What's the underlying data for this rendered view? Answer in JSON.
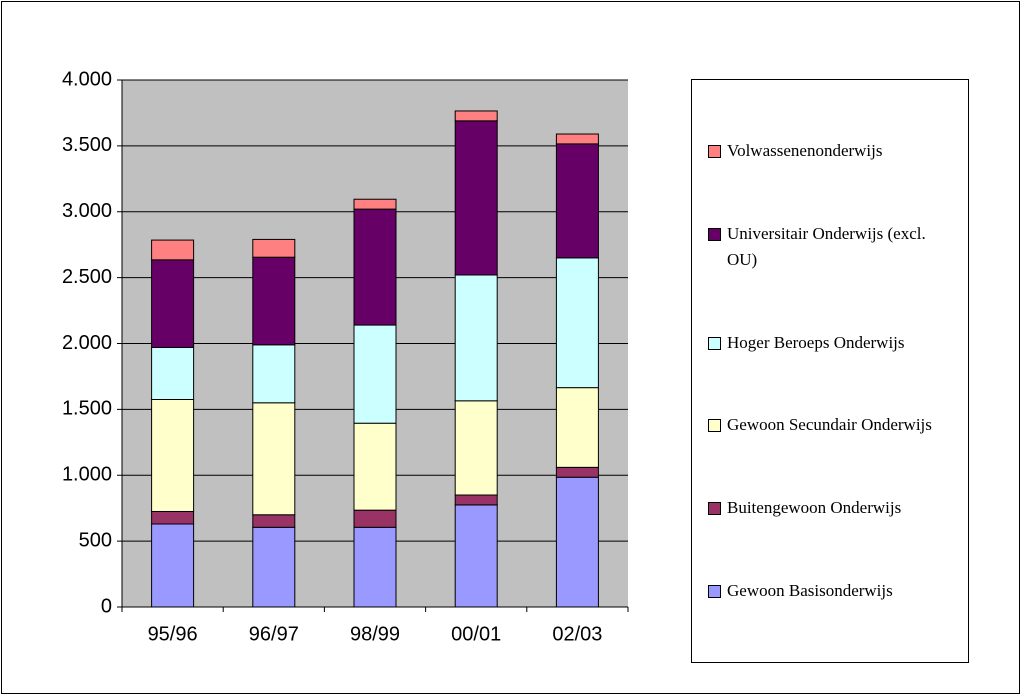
{
  "chart_data": {
    "type": "stacked_bar",
    "categories": [
      "95/96",
      "96/97",
      "98/99",
      "00/01",
      "02/03"
    ],
    "series": [
      {
        "name": "Gewoon Basisonderwijs",
        "color": "#9999ff",
        "values": [
          630,
          605,
          605,
          775,
          985
        ]
      },
      {
        "name": "Buitengewoon Onderwijs",
        "color": "#993366",
        "values": [
          95,
          95,
          130,
          75,
          75
        ]
      },
      {
        "name": "Gewoon Secundair Onderwijs",
        "color": "#ffffcc",
        "values": [
          850,
          850,
          660,
          715,
          605
        ]
      },
      {
        "name": "Hoger Beroeps Onderwijs",
        "color": "#ccffff",
        "values": [
          395,
          440,
          745,
          955,
          985
        ]
      },
      {
        "name": "Universitair Onderwijs (excl. OU)",
        "color": "#660066",
        "values": [
          665,
          665,
          880,
          1170,
          865
        ]
      },
      {
        "name": "Volwassenenonderwijs",
        "color": "#ff8080",
        "values": [
          150,
          135,
          75,
          75,
          75
        ]
      }
    ],
    "ylim": [
      0,
      4000
    ],
    "yticks": [
      0,
      500,
      {
        "value": 1000,
        "label": "1.000"
      },
      {
        "value": 1500,
        "label": "1.500"
      },
      {
        "value": 2000,
        "label": "2.000"
      },
      {
        "value": 2500,
        "label": "2.500"
      },
      {
        "value": 3000,
        "label": "3.000"
      },
      {
        "value": 3500,
        "label": "3.500"
      },
      {
        "value": 4000,
        "label": "4.000"
      }
    ],
    "grid": true,
    "plot_background": "#c0c0c0",
    "legend": "right"
  }
}
